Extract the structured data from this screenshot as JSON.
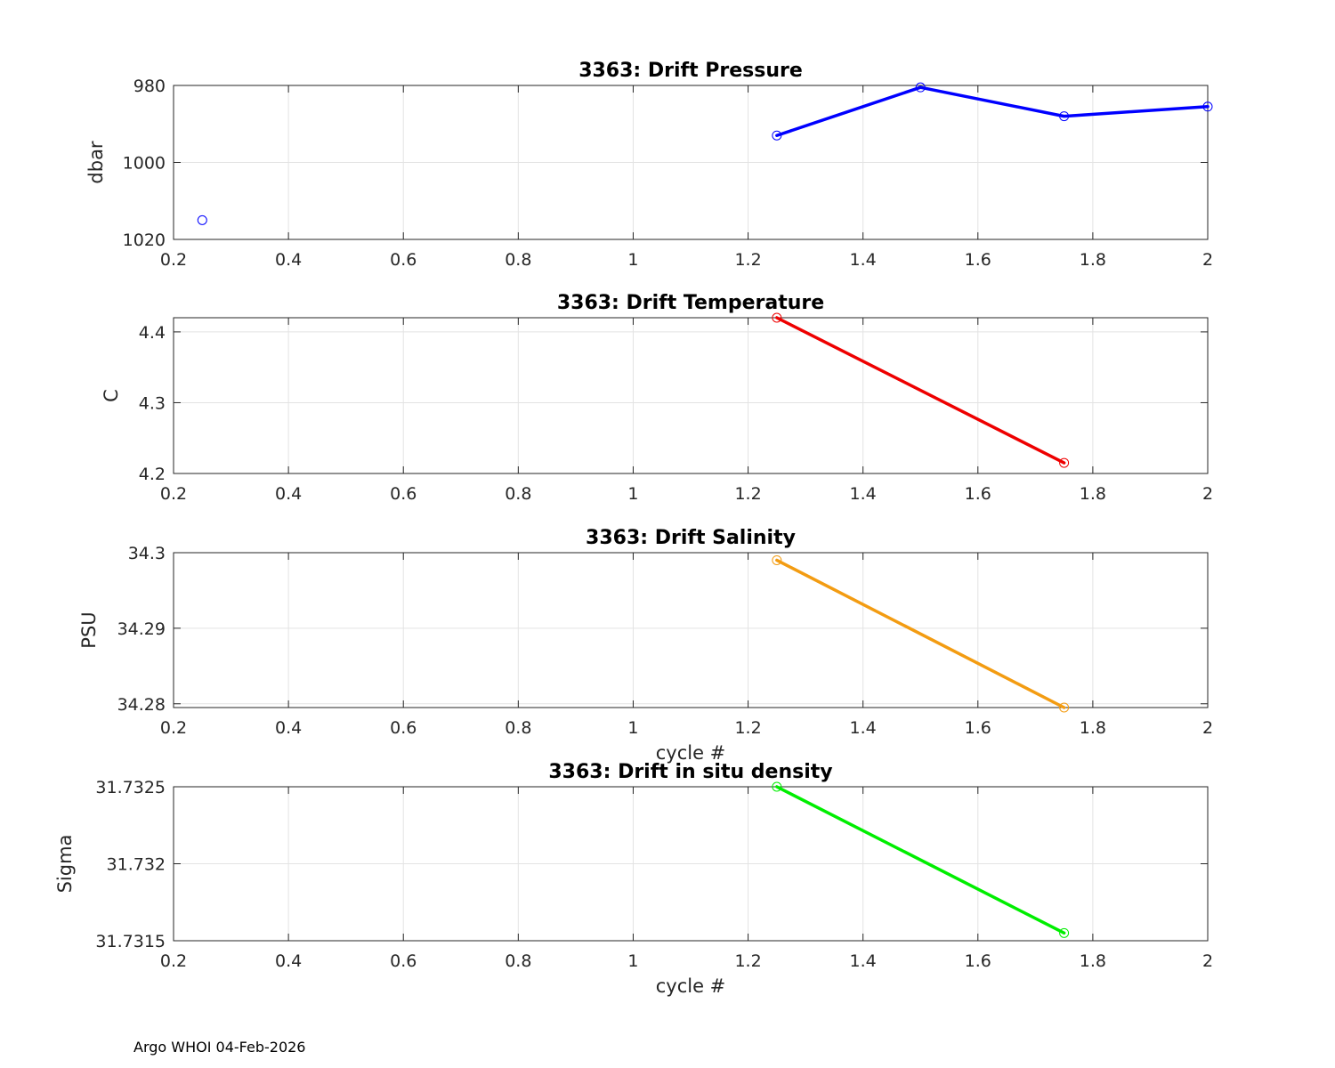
{
  "footer": "Argo WHOI 04-Feb-2026",
  "chart_data": [
    {
      "type": "line",
      "title": "3363: Drift Pressure",
      "xlabel": "",
      "ylabel": "dbar",
      "xlim": [
        0.2,
        2
      ],
      "ylim": [
        980,
        1020
      ],
      "y_reversed": true,
      "xticks": [
        0.2,
        0.4,
        0.6,
        0.8,
        1,
        1.2,
        1.4,
        1.6,
        1.8,
        2
      ],
      "xtick_labels": [
        "0.2",
        "0.4",
        "0.6",
        "0.8",
        "1",
        "1.2",
        "1.4",
        "1.6",
        "1.8",
        "2"
      ],
      "yticks": [
        980,
        1000,
        1020
      ],
      "ytick_labels": [
        "980",
        "1000",
        "1020"
      ],
      "grid": true,
      "color": "#0000ff",
      "series": [
        {
          "x": [
            0.25
          ],
          "y": [
            1015
          ],
          "line": false
        },
        {
          "x": [
            1.25,
            1.5,
            1.75,
            2
          ],
          "y": [
            993,
            980.5,
            988,
            985.5
          ],
          "line": true
        }
      ]
    },
    {
      "type": "line",
      "title": "3363: Drift Temperature",
      "xlabel": "",
      "ylabel": "C",
      "xlim": [
        0.2,
        2
      ],
      "ylim": [
        4.2,
        4.42
      ],
      "y_reversed": false,
      "xticks": [
        0.2,
        0.4,
        0.6,
        0.8,
        1,
        1.2,
        1.4,
        1.6,
        1.8,
        2
      ],
      "xtick_labels": [
        "0.2",
        "0.4",
        "0.6",
        "0.8",
        "1",
        "1.2",
        "1.4",
        "1.6",
        "1.8",
        "2"
      ],
      "yticks": [
        4.2,
        4.3,
        4.4
      ],
      "ytick_labels": [
        "4.2",
        "4.3",
        "4.4"
      ],
      "grid": true,
      "color": "#ee0000",
      "series": [
        {
          "x": [
            1.25,
            1.75
          ],
          "y": [
            4.42,
            4.215
          ],
          "line": true
        }
      ]
    },
    {
      "type": "line",
      "title": "3363: Drift Salinity",
      "xlabel": "cycle #",
      "ylabel": "PSU",
      "xlim": [
        0.2,
        2
      ],
      "ylim": [
        34.2795,
        34.3
      ],
      "y_reversed": false,
      "xticks": [
        0.2,
        0.4,
        0.6,
        0.8,
        1,
        1.2,
        1.4,
        1.6,
        1.8,
        2
      ],
      "xtick_labels": [
        "0.2",
        "0.4",
        "0.6",
        "0.8",
        "1",
        "1.2",
        "1.4",
        "1.6",
        "1.8",
        "2"
      ],
      "yticks": [
        34.28,
        34.29,
        34.3
      ],
      "ytick_labels": [
        "34.28",
        "34.29",
        "34.3"
      ],
      "grid": true,
      "color": "#f39c12",
      "series": [
        {
          "x": [
            1.25,
            1.75
          ],
          "y": [
            34.299,
            34.2795
          ],
          "line": true
        }
      ]
    },
    {
      "type": "line",
      "title": "3363: Drift in situ density",
      "xlabel": "cycle #",
      "ylabel": "Sigma",
      "xlim": [
        0.2,
        2
      ],
      "ylim": [
        31.7315,
        31.7325
      ],
      "y_reversed": false,
      "xticks": [
        0.2,
        0.4,
        0.6,
        0.8,
        1,
        1.2,
        1.4,
        1.6,
        1.8,
        2
      ],
      "xtick_labels": [
        "0.2",
        "0.4",
        "0.6",
        "0.8",
        "1",
        "1.2",
        "1.4",
        "1.6",
        "1.8",
        "2"
      ],
      "yticks": [
        31.7315,
        31.732,
        31.7325
      ],
      "ytick_labels": [
        "31.7315",
        "31.732",
        "31.7325"
      ],
      "grid": true,
      "color": "#00ee00",
      "series": [
        {
          "x": [
            1.25,
            1.75
          ],
          "y": [
            31.7325,
            31.73155
          ],
          "line": true
        }
      ]
    }
  ]
}
